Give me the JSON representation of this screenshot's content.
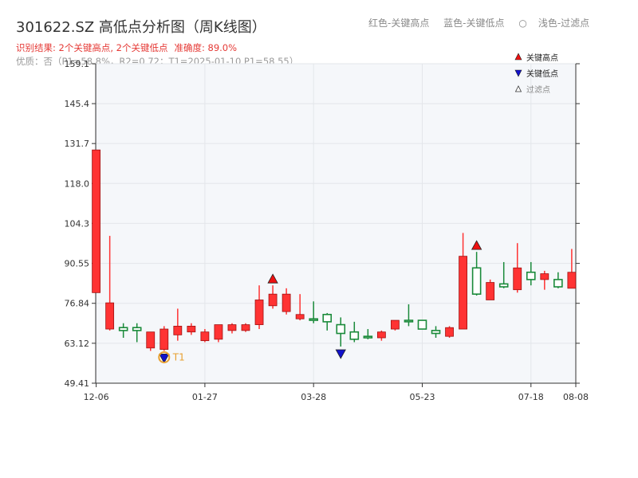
{
  "title": "301622.SZ 高低点分析图（周K线图）",
  "legend_top": {
    "red": "红色-关键高点",
    "blue": "蓝色-关键低点",
    "filtered": "浅色-过滤点"
  },
  "subtitle": {
    "result": "识别结果: 2个关键高点, 2个关键低点",
    "accuracy": "准确度: 89.0%",
    "quality": "优质：否（P1=58.8%，R2=0.72；T1=2025-01-10 P1=58.55）"
  },
  "colors": {
    "up": "#ff3333",
    "down": "#1a8a3a",
    "high_marker": "#ee1111",
    "low_marker": "#1111cc",
    "plot_bg": "#f5f7fa",
    "grid": "#e3e6ea",
    "annotation": "#e8a030"
  },
  "chart_data": {
    "type": "candlestick",
    "title": "301622.SZ 高低点分析图（周K线图）",
    "y_ticks": [
      "49.41",
      "63.12",
      "76.84",
      "90.55",
      "104.3",
      "118.0",
      "131.7",
      "145.4",
      "159.1"
    ],
    "ylim": [
      49.41,
      159.1
    ],
    "x_ticks": [
      {
        "label": "12-06",
        "index": 0
      },
      {
        "label": "01-27",
        "index": 8
      },
      {
        "label": "03-28",
        "index": 16
      },
      {
        "label": "05-23",
        "index": 24
      },
      {
        "label": "07-18",
        "index": 32
      },
      {
        "label": "08-08",
        "index": 35.3
      }
    ],
    "x_range": [
      0,
      35.3
    ],
    "grid": true,
    "candles": [
      {
        "o": 80.5,
        "h": 129.5,
        "l": 80.5,
        "c": 129.5
      },
      {
        "o": 68.0,
        "h": 100.0,
        "l": 67.5,
        "c": 77.0
      },
      {
        "o": 68.5,
        "h": 70.0,
        "l": 65.0,
        "c": 67.5
      },
      {
        "o": 68.5,
        "h": 70.0,
        "l": 63.5,
        "c": 67.5
      },
      {
        "o": 61.5,
        "h": 67.0,
        "l": 60.5,
        "c": 67.0
      },
      {
        "o": 61.0,
        "h": 69.0,
        "l": 60.5,
        "c": 68.0
      },
      {
        "o": 66.0,
        "h": 75.0,
        "l": 64.0,
        "c": 69.0
      },
      {
        "o": 67.0,
        "h": 70.0,
        "l": 66.0,
        "c": 69.0
      },
      {
        "o": 64.0,
        "h": 68.0,
        "l": 63.5,
        "c": 67.0
      },
      {
        "o": 64.5,
        "h": 69.5,
        "l": 63.5,
        "c": 69.5
      },
      {
        "o": 67.5,
        "h": 70.0,
        "l": 66.5,
        "c": 69.5
      },
      {
        "o": 67.5,
        "h": 70.0,
        "l": 67.0,
        "c": 69.5
      },
      {
        "o": 69.5,
        "h": 83.0,
        "l": 68.0,
        "c": 78.0
      },
      {
        "o": 76.0,
        "h": 83.0,
        "l": 75.0,
        "c": 80.0
      },
      {
        "o": 74.0,
        "h": 82.0,
        "l": 73.0,
        "c": 80.0
      },
      {
        "o": 71.5,
        "h": 80.0,
        "l": 71.0,
        "c": 73.0
      },
      {
        "o": 71.5,
        "h": 77.5,
        "l": 70.0,
        "c": 71.0
      },
      {
        "o": 73.0,
        "h": 73.5,
        "l": 67.5,
        "c": 70.5
      },
      {
        "o": 69.5,
        "h": 72.0,
        "l": 62.0,
        "c": 66.5
      },
      {
        "o": 67.0,
        "h": 70.5,
        "l": 63.5,
        "c": 64.5
      },
      {
        "o": 65.5,
        "h": 68.0,
        "l": 64.5,
        "c": 65.0
      },
      {
        "o": 65.0,
        "h": 67.5,
        "l": 64.0,
        "c": 67.0
      },
      {
        "o": 68.0,
        "h": 71.0,
        "l": 67.5,
        "c": 71.0
      },
      {
        "o": 71.0,
        "h": 76.5,
        "l": 69.0,
        "c": 70.5
      },
      {
        "o": 71.0,
        "h": 71.0,
        "l": 68.0,
        "c": 68.0
      },
      {
        "o": 67.5,
        "h": 69.0,
        "l": 65.0,
        "c": 66.5
      },
      {
        "o": 65.5,
        "h": 69.0,
        "l": 65.0,
        "c": 68.5
      },
      {
        "o": 68.0,
        "h": 101.0,
        "l": 68.0,
        "c": 93.0
      },
      {
        "o": 89.0,
        "h": 94.5,
        "l": 79.5,
        "c": 80.0
      },
      {
        "o": 78.0,
        "h": 85.0,
        "l": 78.0,
        "c": 84.0
      },
      {
        "o": 83.5,
        "h": 91.0,
        "l": 82.0,
        "c": 82.5
      },
      {
        "o": 81.5,
        "h": 97.5,
        "l": 80.5,
        "c": 89.0
      },
      {
        "o": 87.5,
        "h": 91.0,
        "l": 83.0,
        "c": 85.0
      },
      {
        "o": 85.0,
        "h": 88.0,
        "l": 81.5,
        "c": 87.0
      },
      {
        "o": 85.0,
        "h": 87.5,
        "l": 82.0,
        "c": 82.5
      },
      {
        "o": 82.0,
        "h": 95.5,
        "l": 82.0,
        "c": 87.5
      }
    ],
    "key_highs": [
      13,
      28
    ],
    "key_lows": [
      5,
      18
    ],
    "annotation": {
      "label": "T1",
      "index": 5
    },
    "legend": [
      "关键高点",
      "关键低点",
      "过滤点"
    ],
    "legend_position": "top-right"
  }
}
